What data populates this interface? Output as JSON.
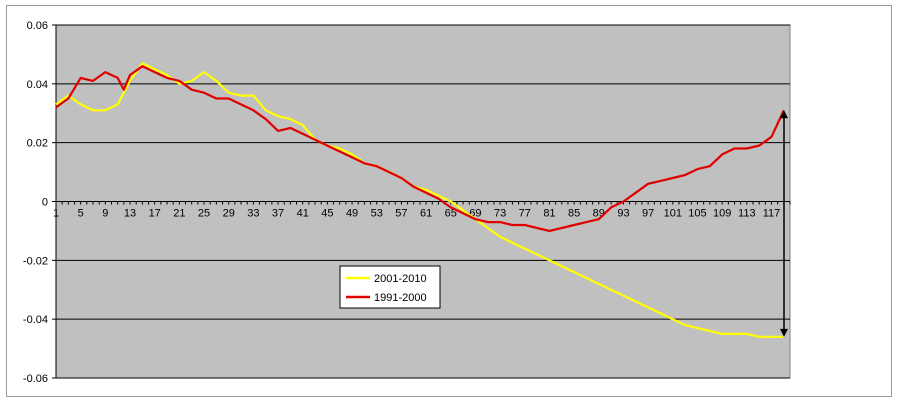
{
  "chart_data": {
    "type": "line",
    "title": "",
    "xlabel": "",
    "ylabel": "",
    "ylim": [
      -0.06,
      0.06
    ],
    "yticks": [
      "0.06",
      "0.04",
      "0.02",
      "0",
      "-0.02",
      "-0.04",
      "-0.06"
    ],
    "ytick_values": [
      0.06,
      0.04,
      0.02,
      0,
      -0.02,
      -0.04,
      -0.06
    ],
    "xlim": [
      1,
      120
    ],
    "xticks": [
      "1",
      "5",
      "9",
      "13",
      "17",
      "21",
      "25",
      "29",
      "33",
      "37",
      "41",
      "45",
      "49",
      "53",
      "57",
      "61",
      "65",
      "69",
      "73",
      "77",
      "81",
      "85",
      "89",
      "93",
      "97",
      "101",
      "105",
      "109",
      "113",
      "117"
    ],
    "grid": true,
    "legend_position": "center-left",
    "plot_background": "#c0c0c0",
    "series": [
      {
        "name": "2001-2010",
        "color": "#ffff00",
        "x": [
          1,
          3,
          5,
          7,
          9,
          11,
          13,
          15,
          17,
          19,
          21,
          23,
          25,
          27,
          29,
          31,
          33,
          35,
          37,
          39,
          41,
          43,
          45,
          47,
          49,
          51,
          53,
          55,
          57,
          59,
          61,
          63,
          65,
          67,
          69,
          71,
          73,
          75,
          77,
          79,
          81,
          83,
          85,
          87,
          89,
          91,
          93,
          95,
          97,
          99,
          101,
          103,
          105,
          107,
          109,
          111,
          113,
          115,
          117,
          119
        ],
        "values": [
          0.033,
          0.036,
          0.033,
          0.031,
          0.031,
          0.033,
          0.041,
          0.047,
          0.045,
          0.043,
          0.04,
          0.041,
          0.044,
          0.041,
          0.037,
          0.036,
          0.036,
          0.031,
          0.029,
          0.028,
          0.026,
          0.021,
          0.019,
          0.018,
          0.016,
          0.013,
          0.012,
          0.01,
          0.008,
          0.005,
          0.004,
          0.002,
          0.0,
          -0.003,
          -0.006,
          -0.009,
          -0.012,
          -0.014,
          -0.016,
          -0.018,
          -0.02,
          -0.022,
          -0.024,
          -0.026,
          -0.028,
          -0.03,
          -0.032,
          -0.034,
          -0.036,
          -0.038,
          -0.04,
          -0.042,
          -0.043,
          -0.044,
          -0.045,
          -0.045,
          -0.045,
          -0.046,
          -0.046,
          -0.046
        ]
      },
      {
        "name": "1991-2000",
        "color": "#e00000",
        "x": [
          1,
          3,
          5,
          7,
          9,
          11,
          12,
          13,
          15,
          17,
          19,
          21,
          23,
          25,
          27,
          29,
          31,
          33,
          35,
          37,
          39,
          41,
          43,
          45,
          47,
          49,
          51,
          53,
          55,
          57,
          59,
          61,
          63,
          65,
          67,
          69,
          71,
          73,
          75,
          77,
          79,
          81,
          83,
          85,
          87,
          89,
          91,
          93,
          95,
          97,
          99,
          101,
          103,
          105,
          107,
          109,
          111,
          113,
          115,
          117,
          119
        ],
        "values": [
          0.032,
          0.035,
          0.042,
          0.041,
          0.044,
          0.042,
          0.038,
          0.043,
          0.046,
          0.044,
          0.042,
          0.041,
          0.038,
          0.037,
          0.035,
          0.035,
          0.033,
          0.031,
          0.028,
          0.024,
          0.025,
          0.023,
          0.021,
          0.019,
          0.017,
          0.015,
          0.013,
          0.012,
          0.01,
          0.008,
          0.005,
          0.003,
          0.001,
          -0.002,
          -0.004,
          -0.006,
          -0.007,
          -0.007,
          -0.008,
          -0.008,
          -0.009,
          -0.01,
          -0.009,
          -0.008,
          -0.007,
          -0.006,
          -0.002,
          0.0,
          0.003,
          0.006,
          0.007,
          0.008,
          0.009,
          0.011,
          0.012,
          0.016,
          0.018,
          0.018,
          0.019,
          0.022,
          0.031
        ]
      }
    ]
  }
}
